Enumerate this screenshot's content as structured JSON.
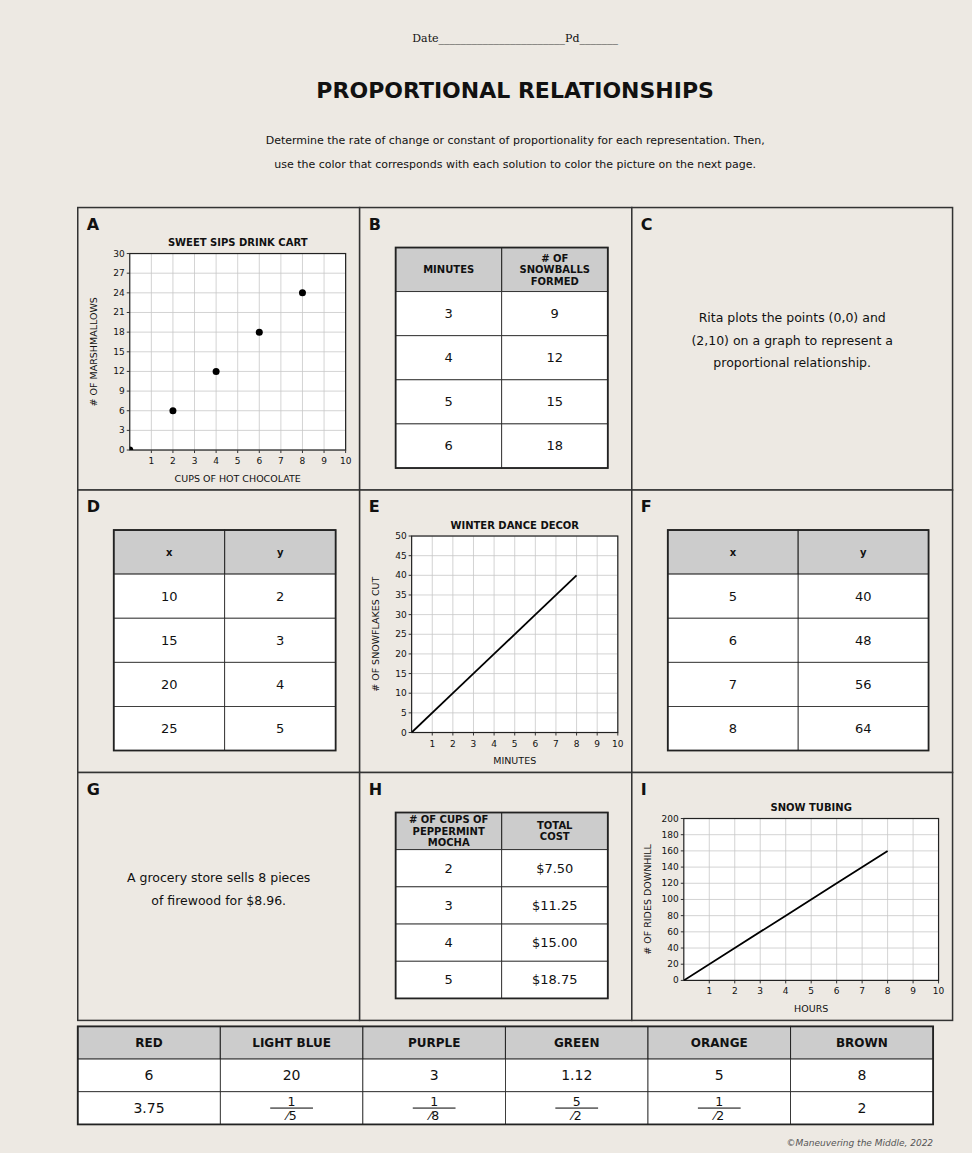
{
  "title": "PROPORTIONAL RELATIONSHIPS",
  "subtitle": [
    "Determine the rate of change or constant of proportionality for each representation. Then,",
    "use the color that corresponds with each solution to color the picture on the next page."
  ],
  "annotations": [
    "Date_______________________Pd_______",
    "©Maneuvering the Middle, 2022"
  ],
  "chart_data": [
    {
      "type": "scatter",
      "label": "A",
      "title": "SWEET SIPS DRINK CART",
      "xlabel": "CUPS OF HOT CHOCOLATE",
      "ylabel": "# OF MARSHMALLOWS",
      "x": [
        0,
        2,
        4,
        6,
        8
      ],
      "values": [
        0,
        6,
        12,
        18,
        24
      ],
      "xlim": [
        0,
        10
      ],
      "ylim": [
        0,
        30
      ],
      "xticks": [
        1,
        2,
        3,
        4,
        5,
        6,
        7,
        8,
        9,
        10
      ],
      "yticks": [
        0,
        3,
        6,
        9,
        12,
        15,
        18,
        21,
        24,
        27,
        30
      ],
      "grid": true,
      "color": "#000000"
    },
    {
      "type": "table",
      "label": "B",
      "columns": [
        "MINUTES",
        "# OF\nSNOWBALLS\nFORMED"
      ],
      "rows": [
        [
          "3",
          "9"
        ],
        [
          "4",
          "12"
        ],
        [
          "5",
          "15"
        ],
        [
          "6",
          "18"
        ]
      ]
    },
    {
      "type": "text",
      "label": "C",
      "text": "Rita plots the points (0,0) and\n(2,10) on a graph to represent a\nproportional relationship."
    },
    {
      "type": "table",
      "label": "D",
      "columns": [
        "x",
        "y"
      ],
      "rows": [
        [
          "10",
          "2"
        ],
        [
          "15",
          "3"
        ],
        [
          "20",
          "4"
        ],
        [
          "25",
          "5"
        ]
      ]
    },
    {
      "type": "line",
      "label": "E",
      "title": "WINTER DANCE DECOR",
      "xlabel": "MINUTES",
      "ylabel": "# OF SNOWFLAKES CUT",
      "x": [
        0,
        2,
        4,
        6,
        8
      ],
      "values": [
        0,
        10,
        20,
        30,
        40
      ],
      "xlim": [
        0,
        10
      ],
      "ylim": [
        0,
        50
      ],
      "xticks": [
        1,
        2,
        3,
        4,
        5,
        6,
        7,
        8,
        9,
        10
      ],
      "yticks": [
        0,
        5,
        10,
        15,
        20,
        25,
        30,
        35,
        40,
        45,
        50
      ],
      "grid": true,
      "color": "#000000"
    },
    {
      "type": "table",
      "label": "F",
      "columns": [
        "x",
        "y"
      ],
      "rows": [
        [
          "5",
          "40"
        ],
        [
          "6",
          "48"
        ],
        [
          "7",
          "56"
        ],
        [
          "8",
          "64"
        ]
      ]
    },
    {
      "type": "text",
      "label": "G",
      "text": "A grocery store sells 8 pieces\nof firewood for $8.96."
    },
    {
      "type": "table",
      "label": "H",
      "columns": [
        "# OF CUPS OF\nPEPPERMINT\nMOCHA",
        "TOTAL\nCOST"
      ],
      "rows": [
        [
          "2",
          "$7.50"
        ],
        [
          "3",
          "$11.25"
        ],
        [
          "4",
          "$15.00"
        ],
        [
          "5",
          "$18.75"
        ]
      ]
    },
    {
      "type": "line",
      "label": "I",
      "title": "SNOW TUBING",
      "xlabel": "HOURS",
      "ylabel": "# OF RIDES DOWNHILL",
      "x": [
        0,
        2,
        4,
        6,
        8
      ],
      "values": [
        0,
        40,
        80,
        120,
        160
      ],
      "xlim": [
        0,
        10
      ],
      "ylim": [
        0,
        200
      ],
      "xticks": [
        1,
        2,
        3,
        4,
        5,
        6,
        7,
        8,
        9,
        10
      ],
      "yticks": [
        0,
        20,
        40,
        60,
        80,
        100,
        120,
        140,
        160,
        180,
        200
      ],
      "grid": true,
      "color": "#000000"
    },
    {
      "type": "table",
      "columns": [
        "RED",
        "LIGHT BLUE",
        "PURPLE",
        "GREEN",
        "ORANGE",
        "BROWN"
      ],
      "rows": [
        [
          "6",
          "20",
          "3",
          "1.12",
          "5",
          "8"
        ],
        [
          [
            "3.75"
          ],
          [
            "1",
            "⁄5"
          ],
          [
            "1",
            "⁄8"
          ],
          [
            "5",
            "⁄2"
          ],
          [
            "1",
            "⁄2"
          ],
          [
            "2"
          ]
        ]
      ]
    }
  ]
}
